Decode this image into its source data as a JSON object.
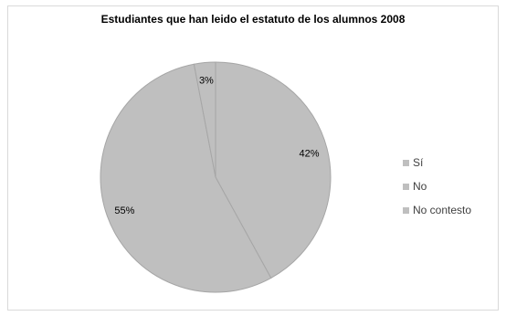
{
  "chart_data": {
    "type": "pie",
    "title": "Estudiantes  que han leido el estatuto  de los alumnos 2008",
    "categories": [
      "Sí",
      "No",
      "No contesto"
    ],
    "values": [
      42,
      55,
      3
    ],
    "data_labels": [
      "42%",
      "55%",
      "3%"
    ],
    "colors": [
      "#bfbfbf",
      "#bfbfbf",
      "#bfbfbf"
    ],
    "slice_border_color": "#a6a6a6",
    "legend_position": "right"
  }
}
